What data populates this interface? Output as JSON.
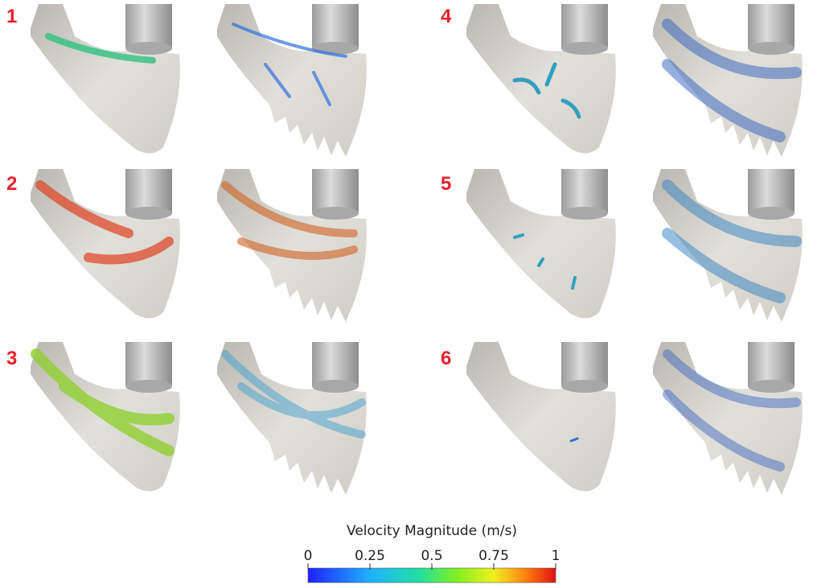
{
  "panels": [
    {
      "label": "1"
    },
    {
      "label": "2"
    },
    {
      "label": "3"
    },
    {
      "label": "4"
    },
    {
      "label": "5"
    },
    {
      "label": "6"
    }
  ],
  "colorbar": {
    "title": "Velocity Magnitude (m/s)",
    "range": [
      0,
      1
    ],
    "ticks": [
      0,
      0.25,
      0.5,
      0.75,
      1
    ]
  }
}
